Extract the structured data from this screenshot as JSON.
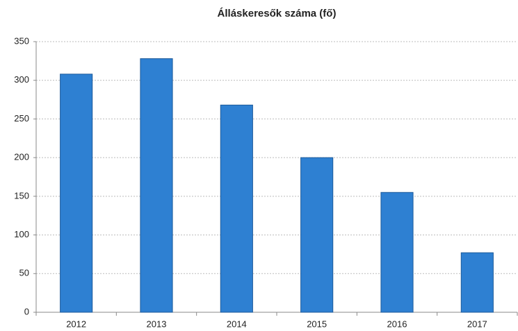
{
  "chart_data": {
    "type": "bar",
    "title": "Álláskeresők száma (fő)",
    "categories": [
      "2012",
      "2013",
      "2014",
      "2015",
      "2016",
      "2017"
    ],
    "values": [
      308,
      328,
      268,
      200,
      155,
      77
    ],
    "color": "#2e80d2",
    "ylim": [
      0,
      350
    ],
    "yticks": [
      0,
      50,
      100,
      150,
      200,
      250,
      300,
      350
    ],
    "grid": true
  }
}
